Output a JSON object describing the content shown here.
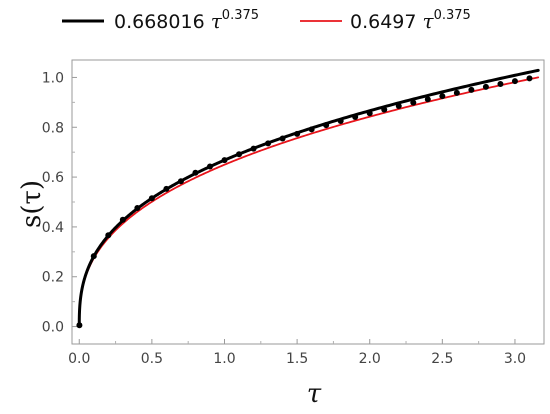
{
  "chart_data": {
    "type": "line",
    "xlabel": "τ",
    "ylabel": "s(τ)",
    "xlim": [
      -0.05,
      3.2
    ],
    "ylim": [
      -0.07,
      1.07
    ],
    "x_ticks": [
      0.0,
      0.5,
      1.0,
      1.5,
      2.0,
      2.5,
      3.0
    ],
    "x_tick_labels": [
      "0.0",
      "0.5",
      "1.0",
      "1.5",
      "2.0",
      "2.5",
      "3.0"
    ],
    "y_ticks": [
      0.0,
      0.2,
      0.4,
      0.6,
      0.8,
      1.0
    ],
    "y_tick_labels": [
      "0.0",
      "0.2",
      "0.4",
      "0.6",
      "0.8",
      "1.0"
    ],
    "grid": false,
    "legend_position": "top",
    "series": [
      {
        "name": "0.668016 τ^0.375",
        "legend_coef": "0.668016",
        "legend_var": "τ",
        "legend_exp": "0.375",
        "coefficient": 0.668016,
        "exponent": 0.375,
        "x_range": [
          0,
          3.16
        ],
        "color": "#000000",
        "style": "thick-line"
      },
      {
        "name": "0.6497 τ^0.375",
        "legend_coef": "0.6497",
        "legend_var": "τ",
        "legend_exp": "0.375",
        "coefficient": 0.6497,
        "exponent": 0.375,
        "x_range": [
          0,
          3.16
        ],
        "color": "#e8141b",
        "style": "thin-line"
      }
    ],
    "points": {
      "x": [
        0.001,
        0.1,
        0.2,
        0.3,
        0.4,
        0.5,
        0.6,
        0.7,
        0.8,
        0.9,
        1.0,
        1.1,
        1.2,
        1.3,
        1.4,
        1.5,
        1.6,
        1.7,
        1.8,
        1.9,
        2.0,
        2.1,
        2.2,
        2.3,
        2.4,
        2.5,
        2.6,
        2.7,
        2.8,
        2.9,
        3.0,
        3.1
      ],
      "y": [
        0.0054,
        0.2826,
        0.3667,
        0.4287,
        0.4758,
        0.5152,
        0.5528,
        0.5835,
        0.6172,
        0.6424,
        0.668,
        0.6918,
        0.7141,
        0.7351,
        0.7549,
        0.7737,
        0.7916,
        0.8088,
        0.8252,
        0.841,
        0.8562,
        0.8709,
        0.8851,
        0.8989,
        0.9122,
        0.9252,
        0.9378,
        0.9501,
        0.962,
        0.9736,
        0.9851,
        0.9962
      ],
      "color": "#000000"
    }
  }
}
